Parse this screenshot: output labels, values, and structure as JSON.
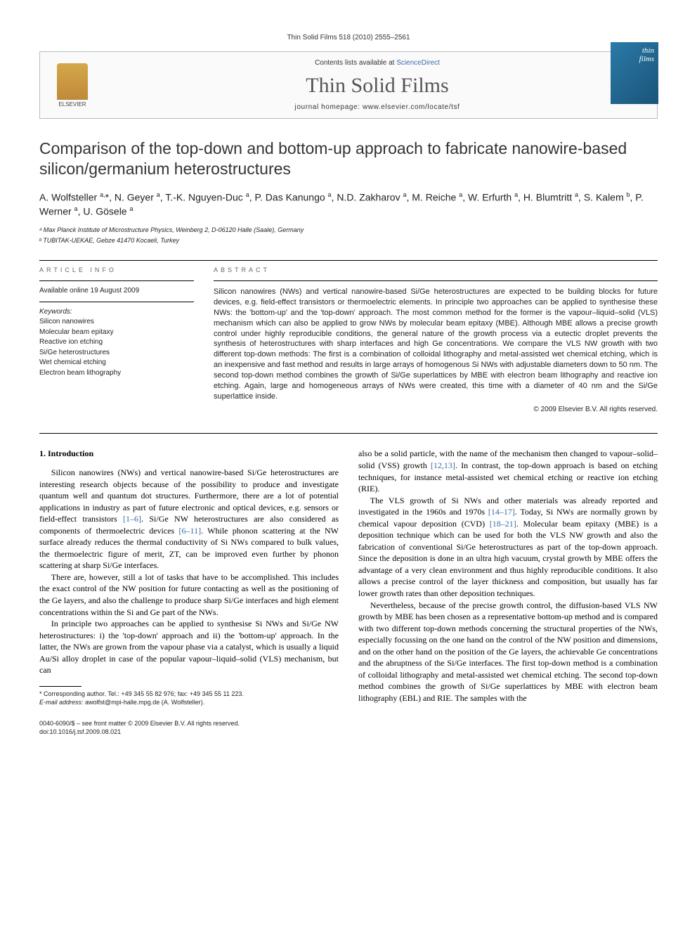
{
  "header_small": "Thin Solid Films 518 (2010) 2555–2561",
  "pub_box": {
    "logo_text": "ELSEVIER",
    "contents_prefix": "Contents lists available at ",
    "contents_link": "ScienceDirect",
    "journal_name": "Thin Solid Films",
    "homepage_label": "journal homepage: ",
    "homepage_url": "www.elsevier.com/locate/tsf",
    "cover_line1": "thin",
    "cover_line2": "films"
  },
  "title": "Comparison of the top-down and bottom-up approach to fabricate nanowire-based silicon/germanium heterostructures",
  "authors_html": "A. Wolfsteller <sup>a,</sup>*, N. Geyer <sup>a</sup>, T.-K. Nguyen-Duc <sup>a</sup>, P. Das Kanungo <sup>a</sup>, N.D. Zakharov <sup>a</sup>, M. Reiche <sup>a</sup>, W. Erfurth <sup>a</sup>, H. Blumtritt <sup>a</sup>, S. Kalem <sup>b</sup>, P. Werner <sup>a</sup>, U. Gösele <sup>a</sup>",
  "affiliations": [
    "ᵃ Max Planck Institute of Microstructure Physics, Weinberg 2, D-06120 Halle (Saale), Germany",
    "ᵇ TUBITAK-UEKAE, Gebze 41470 Kocaeli, Turkey"
  ],
  "article_info": {
    "label": "ARTICLE INFO",
    "available": "Available online 19 August 2009",
    "keywords_label": "Keywords:",
    "keywords": [
      "Silicon nanowires",
      "Molecular beam epitaxy",
      "Reactive ion etching",
      "Si/Ge heterostructures",
      "Wet chemical etching",
      "Electron beam lithography"
    ]
  },
  "abstract": {
    "label": "ABSTRACT",
    "text": "Silicon nanowires (NWs) and vertical nanowire-based Si/Ge heterostructures are expected to be building blocks for future devices, e.g. field-effect transistors or thermoelectric elements. In principle two approaches can be applied to synthesise these NWs: the 'bottom-up' and the 'top-down' approach. The most common method for the former is the vapour–liquid–solid (VLS) mechanism which can also be applied to grow NWs by molecular beam epitaxy (MBE). Although MBE allows a precise growth control under highly reproducible conditions, the general nature of the growth process via a eutectic droplet prevents the synthesis of heterostructures with sharp interfaces and high Ge concentrations. We compare the VLS NW growth with two different top-down methods: The first is a combination of colloidal lithography and metal-assisted wet chemical etching, which is an inexpensive and fast method and results in large arrays of homogenous Si NWs with adjustable diameters down to 50 nm. The second top-down method combines the growth of Si/Ge superlattices by MBE with electron beam lithography and reactive ion etching. Again, large and homogeneous arrays of NWs were created, this time with a diameter of 40 nm and the Si/Ge superlattice inside.",
    "copyright": "© 2009 Elsevier B.V. All rights reserved."
  },
  "intro": {
    "heading": "1. Introduction",
    "p1": "Silicon nanowires (NWs) and vertical nanowire-based Si/Ge heterostructures are interesting research objects because of the possibility to produce and investigate quantum well and quantum dot structures. Furthermore, there are a lot of potential applications in industry as part of future electronic and optical devices, e.g. sensors or field-effect transistors [1–6]. Si/Ge NW heterostructures are also considered as components of thermoelectric devices [6–11]. While phonon scattering at the NW surface already reduces the thermal conductivity of Si NWs compared to bulk values, the thermoelectric figure of merit, ZT, can be improved even further by phonon scattering at sharp Si/Ge interfaces.",
    "p2": "There are, however, still a lot of tasks that have to be accomplished. This includes the exact control of the NW position for future contacting as well as the positioning of the Ge layers, and also the challenge to produce sharp Si/Ge interfaces and high element concentrations within the Si and Ge part of the NWs.",
    "p3": "In principle two approaches can be applied to synthesise Si NWs and Si/Ge NW heterostructures: i) the 'top-down' approach and ii) the 'bottom-up' approach. In the latter, the NWs are grown from the vapour phase via a catalyst, which is usually a liquid Au/Si alloy droplet in case of the popular vapour–liquid–solid (VLS) mechanism, but can",
    "p4": "also be a solid particle, with the name of the mechanism then changed to vapour–solid–solid (VSS) growth [12,13]. In contrast, the top-down approach is based on etching techniques, for instance metal-assisted wet chemical etching or reactive ion etching (RIE).",
    "p5": "The VLS growth of Si NWs and other materials was already reported and investigated in the 1960s and 1970s [14–17]. Today, Si NWs are normally grown by chemical vapour deposition (CVD) [18–21]. Molecular beam epitaxy (MBE) is a deposition technique which can be used for both the VLS NW growth and also the fabrication of conventional Si/Ge heterostructures as part of the top-down approach. Since the deposition is done in an ultra high vacuum, crystal growth by MBE offers the advantage of a very clean environment and thus highly reproducible conditions. It also allows a precise control of the layer thickness and composition, but usually has far lower growth rates than other deposition techniques.",
    "p6": "Nevertheless, because of the precise growth control, the diffusion-based VLS NW growth by MBE has been chosen as a representative bottom-up method and is compared with two different top-down methods concerning the structural properties of the NWs, especially focussing on the one hand on the control of the NW position and dimensions, and on the other hand on the position of the Ge layers, the achievable Ge concentrations and the abruptness of the Si/Ge interfaces. The first top-down method is a combination of colloidal lithography and metal-assisted wet chemical etching. The second top-down method combines the growth of Si/Ge superlattices by MBE with electron beam lithography (EBL) and RIE. The samples with the"
  },
  "footnote": {
    "corr": "* Corresponding author. Tel.: +49 345 55 82 976; fax: +49 345 55 11 223.",
    "email_label": "E-mail address:",
    "email": "awolfst@mpi-halle.mpg.de",
    "email_who": "(A. Wolfsteller)."
  },
  "footer": {
    "issn": "0040-6090/$ – see front matter © 2009 Elsevier B.V. All rights reserved.",
    "doi": "doi:10.1016/j.tsf.2009.08.021"
  }
}
